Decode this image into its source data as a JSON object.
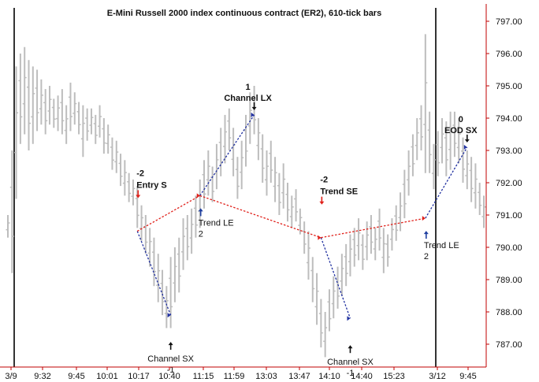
{
  "chart_data": {
    "type": "bar",
    "title": "E-Mini Russell 2000 index continuous contract (ER2), 610-tick bars",
    "xlabel": "",
    "ylabel": "",
    "ylim": [
      786.2,
      797.7
    ],
    "y_ticks": [
      "797.00",
      "796.00",
      "795.00",
      "794.00",
      "793.00",
      "792.00",
      "791.00",
      "790.00",
      "789.00",
      "788.00",
      "787.00"
    ],
    "x_ticks": [
      "3/9",
      "9:32",
      "9:45",
      "10:01",
      "10:17",
      "10:40",
      "11:15",
      "11:59",
      "13:03",
      "13:47",
      "14:10",
      "14:40",
      "15:23",
      "3/12",
      "9:45"
    ],
    "session_separators": [
      "3/9",
      "3/12"
    ],
    "colors": {
      "bars": "#bdbdbd",
      "long_arrow": "#1f3fa0",
      "short_arrow": "#e0201a",
      "exit_arrow": "#111111",
      "blue_line": "#2030a0",
      "red_line": "#e0201a",
      "axis": "#c00000"
    },
    "bars": [
      {
        "x": 0,
        "lo": 790.3,
        "hi": 791.0
      },
      {
        "x": 1,
        "lo": 789.2,
        "hi": 793.0
      },
      {
        "x": 2,
        "lo": 791.5,
        "hi": 795.6
      },
      {
        "x": 3,
        "lo": 793.2,
        "hi": 796.0
      },
      {
        "x": 4,
        "lo": 793.5,
        "hi": 796.2
      },
      {
        "x": 5,
        "lo": 793.0,
        "hi": 795.8
      },
      {
        "x": 6,
        "lo": 793.2,
        "hi": 795.6
      },
      {
        "x": 7,
        "lo": 793.6,
        "hi": 795.5
      },
      {
        "x": 8,
        "lo": 793.8,
        "hi": 795.2
      },
      {
        "x": 9,
        "lo": 793.5,
        "hi": 794.9
      },
      {
        "x": 10,
        "lo": 793.8,
        "hi": 795.0
      },
      {
        "x": 11,
        "lo": 793.7,
        "hi": 794.6
      },
      {
        "x": 12,
        "lo": 793.6,
        "hi": 794.7
      },
      {
        "x": 13,
        "lo": 793.5,
        "hi": 794.9
      },
      {
        "x": 14,
        "lo": 793.2,
        "hi": 794.4
      },
      {
        "x": 15,
        "lo": 793.6,
        "hi": 795.1
      },
      {
        "x": 16,
        "lo": 793.8,
        "hi": 794.8
      },
      {
        "x": 17,
        "lo": 793.5,
        "hi": 794.5
      },
      {
        "x": 18,
        "lo": 792.8,
        "hi": 794.4
      },
      {
        "x": 19,
        "lo": 793.3,
        "hi": 794.3
      },
      {
        "x": 20,
        "lo": 793.5,
        "hi": 794.3
      },
      {
        "x": 21,
        "lo": 793.2,
        "hi": 794.1
      },
      {
        "x": 22,
        "lo": 793.4,
        "hi": 794.4
      },
      {
        "x": 23,
        "lo": 792.9,
        "hi": 794.0
      },
      {
        "x": 24,
        "lo": 792.9,
        "hi": 793.8
      },
      {
        "x": 25,
        "lo": 792.4,
        "hi": 793.4
      },
      {
        "x": 26,
        "lo": 792.3,
        "hi": 793.3
      },
      {
        "x": 27,
        "lo": 791.9,
        "hi": 792.9
      },
      {
        "x": 28,
        "lo": 791.6,
        "hi": 792.7
      },
      {
        "x": 29,
        "lo": 791.4,
        "hi": 792.3
      },
      {
        "x": 30,
        "lo": 791.3,
        "hi": 792.1
      },
      {
        "x": 31,
        "lo": 790.6,
        "hi": 791.9
      },
      {
        "x": 32,
        "lo": 790.2,
        "hi": 791.3
      },
      {
        "x": 33,
        "lo": 789.8,
        "hi": 791.0
      },
      {
        "x": 34,
        "lo": 789.4,
        "hi": 790.6
      },
      {
        "x": 35,
        "lo": 788.8,
        "hi": 790.3
      },
      {
        "x": 36,
        "lo": 788.3,
        "hi": 789.8
      },
      {
        "x": 37,
        "lo": 787.9,
        "hi": 789.3
      },
      {
        "x": 38,
        "lo": 787.5,
        "hi": 788.8
      },
      {
        "x": 39,
        "lo": 787.5,
        "hi": 789.7
      },
      {
        "x": 40,
        "lo": 788.3,
        "hi": 790.0
      },
      {
        "x": 41,
        "lo": 788.6,
        "hi": 790.3
      },
      {
        "x": 42,
        "lo": 789.3,
        "hi": 790.9
      },
      {
        "x": 43,
        "lo": 789.6,
        "hi": 791.0
      },
      {
        "x": 44,
        "lo": 789.8,
        "hi": 791.2
      },
      {
        "x": 45,
        "lo": 790.3,
        "hi": 791.6
      },
      {
        "x": 46,
        "lo": 790.6,
        "hi": 792.1
      },
      {
        "x": 47,
        "lo": 791.2,
        "hi": 792.7
      },
      {
        "x": 48,
        "lo": 791.6,
        "hi": 793.0
      },
      {
        "x": 49,
        "lo": 791.4,
        "hi": 792.5
      },
      {
        "x": 50,
        "lo": 791.8,
        "hi": 793.2
      },
      {
        "x": 51,
        "lo": 792.2,
        "hi": 793.7
      },
      {
        "x": 52,
        "lo": 792.6,
        "hi": 794.1
      },
      {
        "x": 53,
        "lo": 793.0,
        "hi": 794.3
      },
      {
        "x": 54,
        "lo": 792.2,
        "hi": 793.7
      },
      {
        "x": 55,
        "lo": 791.5,
        "hi": 792.8
      },
      {
        "x": 56,
        "lo": 791.8,
        "hi": 793.3
      },
      {
        "x": 57,
        "lo": 792.5,
        "hi": 794.1
      },
      {
        "x": 58,
        "lo": 793.2,
        "hi": 794.8
      },
      {
        "x": 59,
        "lo": 793.5,
        "hi": 795.0
      },
      {
        "x": 60,
        "lo": 792.7,
        "hi": 794.0
      },
      {
        "x": 61,
        "lo": 792.0,
        "hi": 793.5
      },
      {
        "x": 62,
        "lo": 791.6,
        "hi": 793.0
      },
      {
        "x": 63,
        "lo": 792.0,
        "hi": 793.3
      },
      {
        "x": 64,
        "lo": 791.4,
        "hi": 792.8
      },
      {
        "x": 65,
        "lo": 791.0,
        "hi": 792.3
      },
      {
        "x": 66,
        "lo": 791.2,
        "hi": 792.6
      },
      {
        "x": 67,
        "lo": 790.8,
        "hi": 792.0
      },
      {
        "x": 68,
        "lo": 790.6,
        "hi": 791.6
      },
      {
        "x": 69,
        "lo": 790.8,
        "hi": 791.8
      },
      {
        "x": 70,
        "lo": 790.4,
        "hi": 791.2
      },
      {
        "x": 71,
        "lo": 789.8,
        "hi": 790.8
      },
      {
        "x": 72,
        "lo": 789.0,
        "hi": 790.5
      },
      {
        "x": 73,
        "lo": 788.3,
        "hi": 789.7
      },
      {
        "x": 74,
        "lo": 787.6,
        "hi": 789.2
      },
      {
        "x": 75,
        "lo": 786.9,
        "hi": 788.4
      },
      {
        "x": 76,
        "lo": 786.6,
        "hi": 788.0
      },
      {
        "x": 77,
        "lo": 787.4,
        "hi": 788.7
      },
      {
        "x": 78,
        "lo": 787.8,
        "hi": 789.1
      },
      {
        "x": 79,
        "lo": 788.1,
        "hi": 789.4
      },
      {
        "x": 80,
        "lo": 788.5,
        "hi": 789.8
      },
      {
        "x": 81,
        "lo": 788.8,
        "hi": 790.1
      },
      {
        "x": 82,
        "lo": 789.1,
        "hi": 790.4
      },
      {
        "x": 83,
        "lo": 789.4,
        "hi": 790.6
      },
      {
        "x": 84,
        "lo": 789.6,
        "hi": 790.9
      },
      {
        "x": 85,
        "lo": 789.3,
        "hi": 790.4
      },
      {
        "x": 86,
        "lo": 789.6,
        "hi": 790.8
      },
      {
        "x": 87,
        "lo": 789.8,
        "hi": 791.0
      },
      {
        "x": 88,
        "lo": 789.6,
        "hi": 790.6
      },
      {
        "x": 89,
        "lo": 789.9,
        "hi": 791.2
      },
      {
        "x": 90,
        "lo": 789.2,
        "hi": 790.6
      },
      {
        "x": 91,
        "lo": 789.4,
        "hi": 790.4
      },
      {
        "x": 92,
        "lo": 789.9,
        "hi": 790.9
      },
      {
        "x": 93,
        "lo": 790.2,
        "hi": 791.3
      },
      {
        "x": 94,
        "lo": 790.5,
        "hi": 791.7
      },
      {
        "x": 95,
        "lo": 790.9,
        "hi": 792.4
      },
      {
        "x": 96,
        "lo": 791.6,
        "hi": 793.0
      },
      {
        "x": 97,
        "lo": 792.2,
        "hi": 793.5
      },
      {
        "x": 98,
        "lo": 792.7,
        "hi": 794.0
      },
      {
        "x": 99,
        "lo": 793.0,
        "hi": 794.4
      },
      {
        "x": 100,
        "lo": 792.3,
        "hi": 796.6
      },
      {
        "x": 101,
        "lo": 792.3,
        "hi": 794.2
      },
      {
        "x": 102,
        "lo": 791.8,
        "hi": 793.2
      },
      {
        "x": 103,
        "lo": 792.2,
        "hi": 793.6
      },
      {
        "x": 104,
        "lo": 792.6,
        "hi": 794.0
      },
      {
        "x": 105,
        "lo": 792.2,
        "hi": 793.9
      },
      {
        "x": 106,
        "lo": 792.4,
        "hi": 794.2
      },
      {
        "x": 107,
        "lo": 792.8,
        "hi": 794.2
      },
      {
        "x": 108,
        "lo": 792.6,
        "hi": 794.0
      },
      {
        "x": 109,
        "lo": 792.0,
        "hi": 793.4
      },
      {
        "x": 110,
        "lo": 791.8,
        "hi": 793.0
      },
      {
        "x": 111,
        "lo": 791.4,
        "hi": 792.8
      },
      {
        "x": 112,
        "lo": 791.2,
        "hi": 792.6
      },
      {
        "x": 113,
        "lo": 791.0,
        "hi": 792.0
      },
      {
        "x": 114,
        "lo": 790.6,
        "hi": 791.6
      }
    ],
    "bar_x_range": [
      0,
      114
    ],
    "signals": [
      {
        "label": "Entry S",
        "count": "-2",
        "x": 31,
        "price": 790.5,
        "direction": "short"
      },
      {
        "label": "Channel SX",
        "count": "-1",
        "x": 39,
        "price": 787.9,
        "direction": "exit-up"
      },
      {
        "label": "Trend LE",
        "count": "2",
        "x": 46,
        "price": 791.6,
        "direction": "long"
      },
      {
        "label": "Channel LX",
        "count": "1",
        "x": 59,
        "price": 794.1,
        "direction": "exit-down"
      },
      {
        "label": "Trend SE",
        "count": "-2",
        "x": 75,
        "price": 790.3,
        "direction": "short"
      },
      {
        "label": "Channel SX",
        "count": "-1",
        "x": 82,
        "price": 787.8,
        "direction": "exit-up"
      },
      {
        "label": "Trend LE",
        "count": "2",
        "x": 100,
        "price": 790.9,
        "direction": "long"
      },
      {
        "label": "EOD SX",
        "count": "0",
        "x": 110,
        "price": 793.1,
        "direction": "exit-down"
      }
    ],
    "trade_lines": [
      {
        "from": [
          31,
          790.5
        ],
        "to": [
          39,
          787.9
        ],
        "color": "blue"
      },
      {
        "from": [
          46,
          791.6
        ],
        "to": [
          59,
          794.1
        ],
        "color": "blue"
      },
      {
        "from": [
          75,
          790.3
        ],
        "to": [
          82,
          787.8
        ],
        "color": "blue"
      },
      {
        "from": [
          100,
          790.9
        ],
        "to": [
          110,
          793.1
        ],
        "color": "blue"
      },
      {
        "from": [
          31,
          790.5
        ],
        "to": [
          46,
          791.6
        ],
        "color": "red"
      },
      {
        "from": [
          46,
          791.6
        ],
        "to": [
          75,
          790.3
        ],
        "color": "red"
      },
      {
        "from": [
          75,
          790.3
        ],
        "to": [
          100,
          790.9
        ],
        "color": "red"
      }
    ]
  }
}
